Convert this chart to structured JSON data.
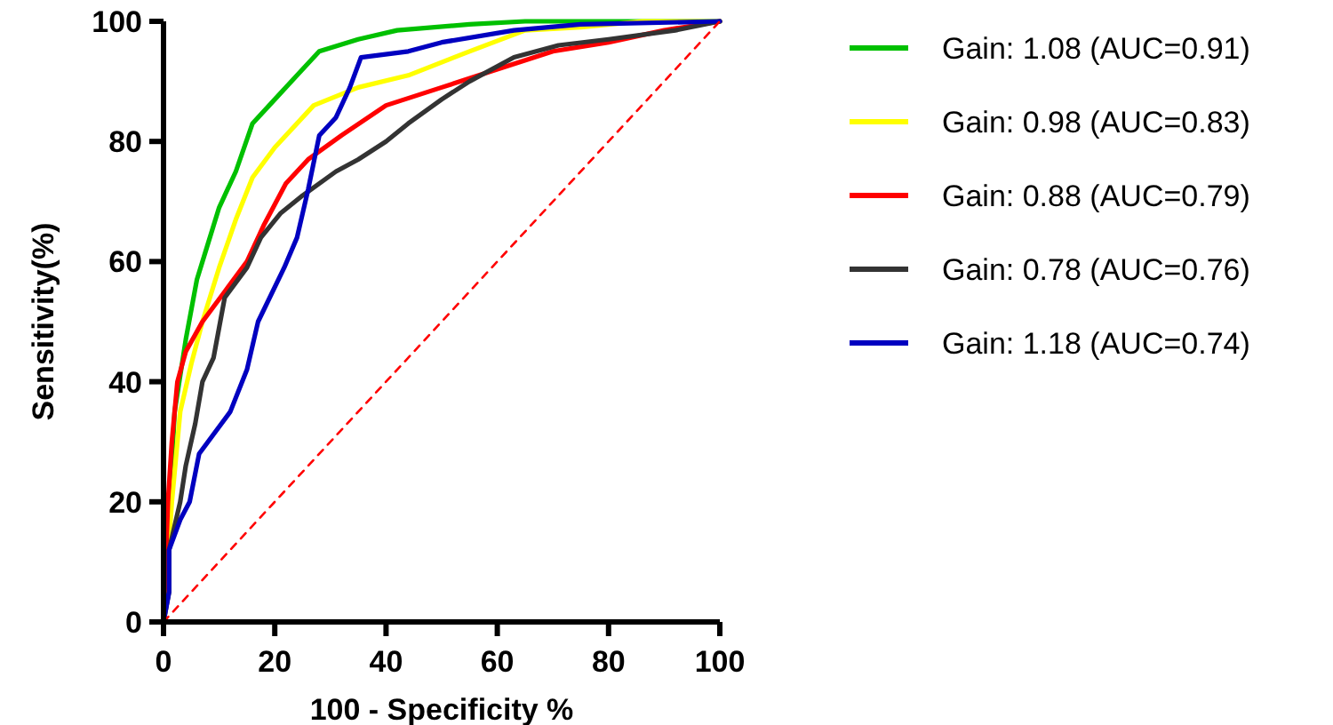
{
  "chart_data": {
    "type": "line",
    "xlabel": "100 - Specificity %",
    "ylabel": "Sensitivity(%)",
    "xlim": [
      0,
      100
    ],
    "ylim": [
      0,
      100
    ],
    "xticks": [
      0,
      20,
      40,
      60,
      80,
      100
    ],
    "yticks": [
      0,
      20,
      40,
      60,
      80,
      100
    ],
    "grid": false,
    "legend": "right",
    "marker": "none",
    "line_style": "solid",
    "series": [
      {
        "name": "Gain: 1.08 (AUC=0.91)",
        "color": "#00c000",
        "x": [
          0,
          2,
          4,
          6,
          8,
          10,
          13,
          16,
          20,
          24,
          28,
          35,
          42,
          55,
          65,
          100
        ],
        "values": [
          0,
          35,
          47,
          57,
          63,
          69,
          75,
          83,
          87,
          91,
          95,
          97,
          98.5,
          99.5,
          100,
          100
        ]
      },
      {
        "name": "Gain: 0.98 (AUC=0.83)",
        "color": "#ffff00",
        "x": [
          0,
          1.5,
          3,
          5,
          7,
          10,
          13,
          16,
          20,
          27,
          35,
          44,
          55,
          65,
          75,
          86,
          100
        ],
        "values": [
          0,
          20,
          35,
          43,
          50,
          59,
          67,
          74,
          79,
          86,
          89,
          91,
          95,
          98.5,
          99,
          100,
          100
        ]
      },
      {
        "name": "Gain: 0.88 (AUC=0.79)",
        "color": "#ff0000",
        "x": [
          0,
          0.8,
          1.5,
          2.5,
          4,
          7,
          11,
          15,
          18,
          22,
          26,
          32,
          40,
          50,
          60,
          70,
          80,
          90,
          100
        ],
        "values": [
          0,
          20,
          30,
          40,
          45,
          50,
          55,
          60,
          66,
          73,
          77,
          81,
          86,
          89,
          92,
          95,
          96.5,
          98.5,
          100
        ]
      },
      {
        "name": "Gain: 0.78 (AUC=0.76)",
        "color": "#333333",
        "x": [
          0,
          1,
          1,
          3,
          4,
          5.7,
          7,
          9,
          11,
          15,
          17.5,
          21,
          25,
          31,
          35,
          40,
          44,
          50,
          55,
          63,
          71,
          80,
          92,
          100
        ],
        "values": [
          0,
          5,
          12,
          20,
          26,
          33,
          40,
          44,
          54,
          59,
          64,
          68,
          71,
          75,
          77,
          80,
          83,
          87,
          90,
          94,
          96,
          97,
          98.5,
          100
        ]
      },
      {
        "name": "Gain: 1.18 (AUC=0.74)",
        "color": "#0000c0",
        "x": [
          0,
          1,
          1,
          3,
          4.7,
          6.4,
          12,
          15,
          17,
          21.7,
          24,
          26,
          28,
          31,
          33.5,
          35.5,
          44,
          50,
          63,
          75,
          100
        ],
        "values": [
          0,
          5,
          12,
          17,
          20,
          28,
          35,
          42,
          50,
          59,
          64,
          72,
          81,
          84,
          89,
          94,
          95,
          96.5,
          98.5,
          99.5,
          100
        ]
      },
      {
        "color": "#ff0000",
        "line_style": "dashed",
        "x": [
          0,
          100
        ],
        "values": [
          0,
          100
        ]
      }
    ]
  }
}
